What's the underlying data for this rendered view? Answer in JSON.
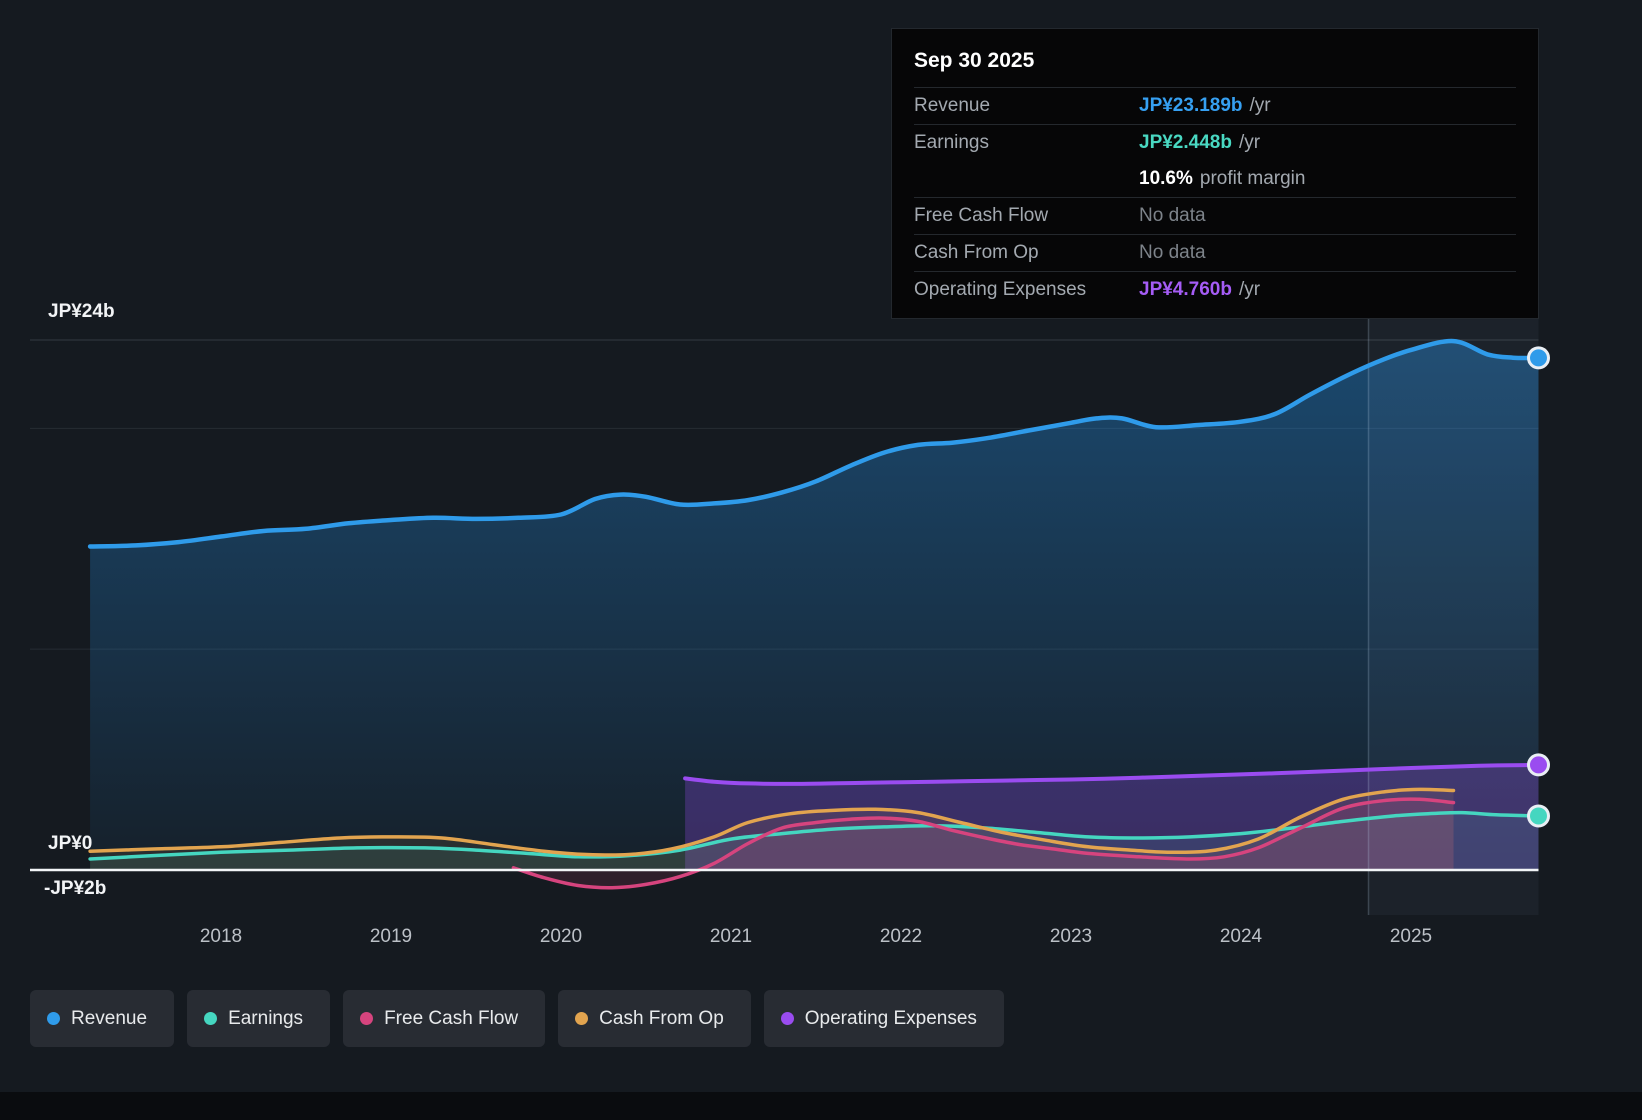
{
  "tooltip": {
    "date": "Sep 30 2025",
    "rows": [
      {
        "label": "Revenue",
        "value": "JP¥23.189b",
        "suffix": "/yr",
        "color": "#36a0f2"
      },
      {
        "label": "Earnings",
        "value": "JP¥2.448b",
        "suffix": "/yr",
        "color": "#49d8c2"
      },
      {
        "label": "",
        "value": "10.6%",
        "suffix": "profit margin",
        "color": "#ffffff"
      },
      {
        "label": "Free Cash Flow",
        "value": "No data",
        "suffix": "",
        "color": "#7d838a"
      },
      {
        "label": "Cash From Op",
        "value": "No data",
        "suffix": "",
        "color": "#7d838a"
      },
      {
        "label": "Operating Expenses",
        "value": "JP¥4.760b",
        "suffix": "/yr",
        "color": "#a55cf5"
      }
    ]
  },
  "y_axis": {
    "top_label": "JP¥24b",
    "zero_label": "JP¥0",
    "neg_label": "-JP¥2b"
  },
  "legend": {
    "items": [
      {
        "label": "Revenue",
        "color": "#2f9bea"
      },
      {
        "label": "Earnings",
        "color": "#45d6c0"
      },
      {
        "label": "Free Cash Flow",
        "color": "#d6447e"
      },
      {
        "label": "Cash From Op",
        "color": "#e2a44f"
      },
      {
        "label": "Operating Expenses",
        "color": "#9a4cf0"
      }
    ]
  },
  "chart_data": {
    "type": "line",
    "x_unit": "calendar year",
    "y_unit": "JP¥ billions",
    "ylim": [
      -2.1,
      24
    ],
    "x_ticks": [
      2018,
      2019,
      2020,
      2021,
      2022,
      2023,
      2024,
      2025
    ],
    "gridline_values": [
      24,
      20,
      10
    ],
    "zero_line": 0,
    "y_tick_labels": {
      "top": "JP¥24b",
      "zero": "JP¥0",
      "bottom": "-JP¥2b"
    },
    "highlight_band": {
      "start": 2024.75,
      "end": 2025.75
    },
    "series": [
      {
        "name": "Revenue",
        "color": "#2f9bea",
        "stroke_width": 4.5,
        "area": "gradient",
        "end_marker": true,
        "points": [
          [
            2017.23,
            14.65
          ],
          [
            2017.5,
            14.7
          ],
          [
            2017.75,
            14.85
          ],
          [
            2018.0,
            15.1
          ],
          [
            2018.25,
            15.35
          ],
          [
            2018.5,
            15.45
          ],
          [
            2018.75,
            15.7
          ],
          [
            2019.0,
            15.85
          ],
          [
            2019.25,
            15.95
          ],
          [
            2019.5,
            15.9
          ],
          [
            2019.75,
            15.95
          ],
          [
            2020.0,
            16.1
          ],
          [
            2020.2,
            16.8
          ],
          [
            2020.35,
            17.0
          ],
          [
            2020.5,
            16.9
          ],
          [
            2020.7,
            16.55
          ],
          [
            2020.9,
            16.6
          ],
          [
            2021.1,
            16.75
          ],
          [
            2021.3,
            17.1
          ],
          [
            2021.5,
            17.6
          ],
          [
            2021.7,
            18.3
          ],
          [
            2021.9,
            18.9
          ],
          [
            2022.1,
            19.25
          ],
          [
            2022.3,
            19.35
          ],
          [
            2022.5,
            19.55
          ],
          [
            2022.75,
            19.9
          ],
          [
            2023.0,
            20.25
          ],
          [
            2023.15,
            20.45
          ],
          [
            2023.3,
            20.45
          ],
          [
            2023.5,
            20.05
          ],
          [
            2023.75,
            20.15
          ],
          [
            2024.0,
            20.3
          ],
          [
            2024.2,
            20.65
          ],
          [
            2024.4,
            21.5
          ],
          [
            2024.6,
            22.3
          ],
          [
            2024.8,
            23.0
          ],
          [
            2025.0,
            23.55
          ],
          [
            2025.25,
            23.95
          ],
          [
            2025.45,
            23.35
          ],
          [
            2025.6,
            23.2
          ],
          [
            2025.75,
            23.189
          ]
        ]
      },
      {
        "name": "Operating Expenses",
        "color": "#9a4cf0",
        "stroke_width": 4,
        "area_opacity": 0.28,
        "end_marker": true,
        "points": [
          [
            2020.73,
            4.15
          ],
          [
            2020.9,
            4.0
          ],
          [
            2021.1,
            3.92
          ],
          [
            2021.4,
            3.9
          ],
          [
            2021.8,
            3.95
          ],
          [
            2022.2,
            4.0
          ],
          [
            2022.6,
            4.05
          ],
          [
            2023.0,
            4.1
          ],
          [
            2023.4,
            4.18
          ],
          [
            2023.8,
            4.28
          ],
          [
            2024.2,
            4.38
          ],
          [
            2024.6,
            4.5
          ],
          [
            2025.0,
            4.62
          ],
          [
            2025.4,
            4.72
          ],
          [
            2025.75,
            4.76
          ]
        ]
      },
      {
        "name": "Earnings",
        "color": "#45d6c0",
        "stroke_width": 3.5,
        "area_opacity": 0.1,
        "end_marker": true,
        "points": [
          [
            2017.23,
            0.5
          ],
          [
            2017.6,
            0.65
          ],
          [
            2018.0,
            0.8
          ],
          [
            2018.4,
            0.9
          ],
          [
            2018.8,
            1.0
          ],
          [
            2019.2,
            1.0
          ],
          [
            2019.5,
            0.9
          ],
          [
            2019.8,
            0.75
          ],
          [
            2020.1,
            0.6
          ],
          [
            2020.4,
            0.65
          ],
          [
            2020.7,
            0.9
          ],
          [
            2021.0,
            1.4
          ],
          [
            2021.3,
            1.65
          ],
          [
            2021.6,
            1.85
          ],
          [
            2021.9,
            1.95
          ],
          [
            2022.2,
            2.0
          ],
          [
            2022.5,
            1.9
          ],
          [
            2022.8,
            1.7
          ],
          [
            2023.1,
            1.5
          ],
          [
            2023.4,
            1.45
          ],
          [
            2023.7,
            1.5
          ],
          [
            2024.0,
            1.65
          ],
          [
            2024.3,
            1.9
          ],
          [
            2024.6,
            2.2
          ],
          [
            2024.9,
            2.45
          ],
          [
            2025.1,
            2.55
          ],
          [
            2025.3,
            2.6
          ],
          [
            2025.5,
            2.5
          ],
          [
            2025.75,
            2.448
          ]
        ]
      },
      {
        "name": "Cash From Op",
        "color": "#e2a44f",
        "stroke_width": 3.5,
        "area_opacity": 0.1,
        "end_marker": false,
        "points": [
          [
            2017.23,
            0.85
          ],
          [
            2017.6,
            0.95
          ],
          [
            2018.0,
            1.05
          ],
          [
            2018.35,
            1.25
          ],
          [
            2018.7,
            1.45
          ],
          [
            2019.0,
            1.5
          ],
          [
            2019.3,
            1.45
          ],
          [
            2019.6,
            1.15
          ],
          [
            2019.9,
            0.85
          ],
          [
            2020.15,
            0.7
          ],
          [
            2020.4,
            0.7
          ],
          [
            2020.65,
            0.95
          ],
          [
            2020.9,
            1.5
          ],
          [
            2021.1,
            2.15
          ],
          [
            2021.35,
            2.55
          ],
          [
            2021.6,
            2.7
          ],
          [
            2021.85,
            2.75
          ],
          [
            2022.1,
            2.6
          ],
          [
            2022.35,
            2.15
          ],
          [
            2022.6,
            1.7
          ],
          [
            2022.85,
            1.35
          ],
          [
            2023.1,
            1.05
          ],
          [
            2023.35,
            0.9
          ],
          [
            2023.6,
            0.8
          ],
          [
            2023.85,
            0.9
          ],
          [
            2024.1,
            1.4
          ],
          [
            2024.35,
            2.4
          ],
          [
            2024.6,
            3.2
          ],
          [
            2024.85,
            3.55
          ],
          [
            2025.05,
            3.65
          ],
          [
            2025.25,
            3.6
          ]
        ]
      },
      {
        "name": "Free Cash Flow",
        "color": "#d6447e",
        "stroke_width": 3.5,
        "area_opacity": 0.13,
        "end_marker": false,
        "points": [
          [
            2019.72,
            0.1
          ],
          [
            2019.9,
            -0.35
          ],
          [
            2020.1,
            -0.7
          ],
          [
            2020.3,
            -0.8
          ],
          [
            2020.5,
            -0.65
          ],
          [
            2020.7,
            -0.3
          ],
          [
            2020.9,
            0.3
          ],
          [
            2021.1,
            1.2
          ],
          [
            2021.3,
            1.9
          ],
          [
            2021.5,
            2.15
          ],
          [
            2021.7,
            2.3
          ],
          [
            2021.9,
            2.35
          ],
          [
            2022.1,
            2.2
          ],
          [
            2022.3,
            1.8
          ],
          [
            2022.5,
            1.45
          ],
          [
            2022.7,
            1.15
          ],
          [
            2022.9,
            0.95
          ],
          [
            2023.1,
            0.75
          ],
          [
            2023.4,
            0.6
          ],
          [
            2023.7,
            0.5
          ],
          [
            2023.9,
            0.6
          ],
          [
            2024.1,
            1.0
          ],
          [
            2024.35,
            1.9
          ],
          [
            2024.6,
            2.8
          ],
          [
            2024.85,
            3.15
          ],
          [
            2025.05,
            3.2
          ],
          [
            2025.25,
            3.05
          ]
        ]
      }
    ]
  }
}
